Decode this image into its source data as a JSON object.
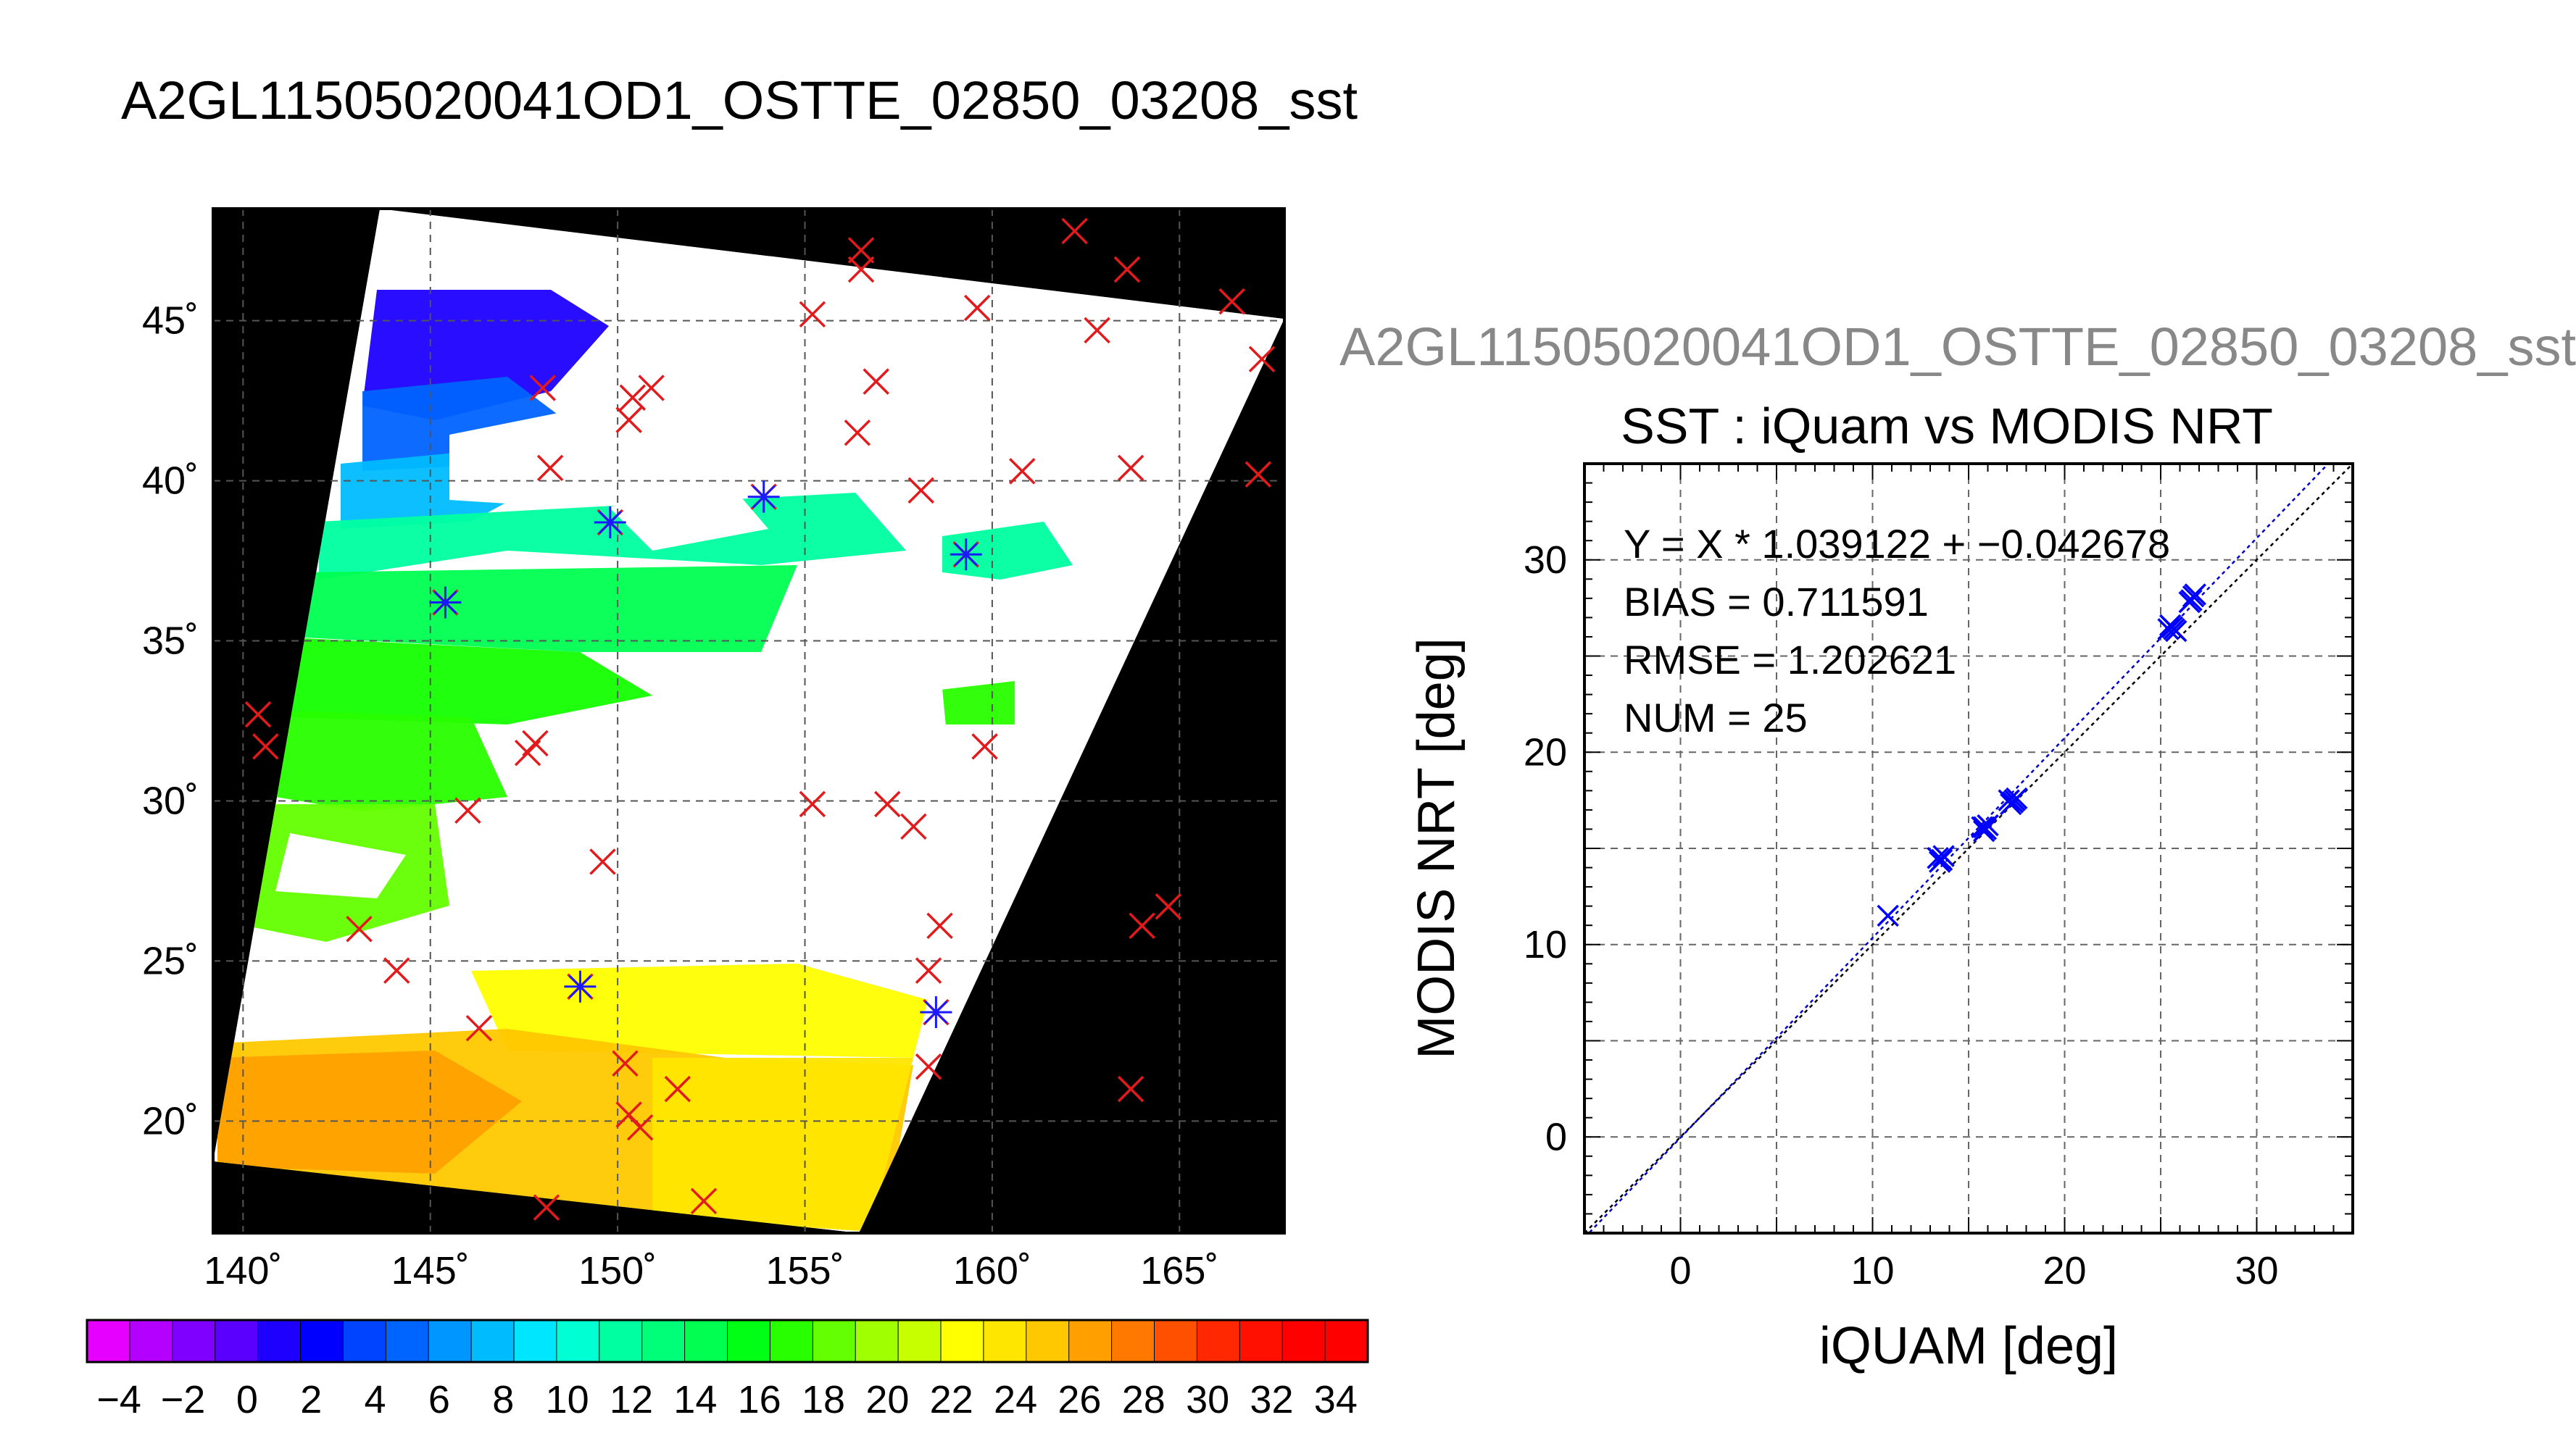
{
  "figure": {
    "main_title": "A2GL11505020041OD1_OSTTE_02850_03208_sst",
    "scatter_supertitle": "A2GL11505020041OD1_OSTTE_02850_03208_sst"
  },
  "colors": {
    "match_marker": "#e31a1c",
    "scatter_marker": "#0000ff",
    "fit_line": "#0000cc",
    "one_to_one_line": "#000000",
    "map_background": "#000000",
    "cloud": "#ffffff"
  },
  "chart_data": [
    {
      "type": "heatmap",
      "title": "",
      "xlabel": "",
      "ylabel": "",
      "x_ticks": [
        "140˚",
        "145˚",
        "150˚",
        "155˚",
        "160˚",
        "165˚"
      ],
      "y_ticks": [
        "20˚",
        "25˚",
        "30˚",
        "35˚",
        "40˚",
        "45˚"
      ],
      "xlim": [
        139.2,
        167.8
      ],
      "ylim": [
        16.5,
        48.5
      ],
      "grid": true,
      "colorbar": {
        "ticks": [
          "−4",
          "−2",
          "0",
          "2",
          "4",
          "6",
          "8",
          "10",
          "12",
          "14",
          "16",
          "18",
          "20",
          "22",
          "24",
          "26",
          "28",
          "30",
          "32",
          "34"
        ],
        "range": [
          -5,
          35
        ],
        "colors": [
          "#e600ff",
          "#b400ff",
          "#7f00ff",
          "#5a00ff",
          "#1e00ff",
          "#0000ff",
          "#0044ff",
          "#0064ff",
          "#0096ff",
          "#00bcff",
          "#00e6ff",
          "#00ffd2",
          "#00ffa0",
          "#00ff78",
          "#00ff50",
          "#00ff14",
          "#28ff00",
          "#64ff00",
          "#a0ff00",
          "#c8ff00",
          "#ffff00",
          "#ffe600",
          "#ffc800",
          "#ffa000",
          "#ff7800",
          "#ff5000",
          "#ff2800",
          "#ff1000",
          "#ff0000",
          "#ff0000"
        ]
      },
      "matchups": [
        {
          "lon": 162.2,
          "lat": 47.8,
          "blue": false
        },
        {
          "lon": 156.5,
          "lat": 47.2,
          "blue": false
        },
        {
          "lon": 156.5,
          "lat": 46.6,
          "blue": false
        },
        {
          "lon": 163.6,
          "lat": 46.6,
          "blue": false
        },
        {
          "lon": 166.4,
          "lat": 45.6,
          "blue": false
        },
        {
          "lon": 159.6,
          "lat": 45.4,
          "blue": false
        },
        {
          "lon": 155.2,
          "lat": 45.2,
          "blue": false
        },
        {
          "lon": 162.8,
          "lat": 44.7,
          "blue": false
        },
        {
          "lon": 167.2,
          "lat": 43.8,
          "blue": false
        },
        {
          "lon": 156.9,
          "lat": 43.1,
          "blue": false
        },
        {
          "lon": 148.0,
          "lat": 42.9,
          "blue": false
        },
        {
          "lon": 150.4,
          "lat": 42.6,
          "blue": false
        },
        {
          "lon": 150.9,
          "lat": 42.9,
          "blue": false
        },
        {
          "lon": 150.3,
          "lat": 41.9,
          "blue": false
        },
        {
          "lon": 156.4,
          "lat": 41.5,
          "blue": false
        },
        {
          "lon": 148.2,
          "lat": 40.4,
          "blue": false
        },
        {
          "lon": 160.8,
          "lat": 40.3,
          "blue": false
        },
        {
          "lon": 163.7,
          "lat": 40.4,
          "blue": false
        },
        {
          "lon": 167.1,
          "lat": 40.2,
          "blue": false
        },
        {
          "lon": 158.1,
          "lat": 39.7,
          "blue": false
        },
        {
          "lon": 153.9,
          "lat": 39.5,
          "blue": true
        },
        {
          "lon": 149.8,
          "lat": 38.7,
          "blue": true
        },
        {
          "lon": 159.3,
          "lat": 37.7,
          "blue": true
        },
        {
          "lon": 145.4,
          "lat": 36.2,
          "blue": true
        },
        {
          "lon": 140.4,
          "lat": 32.7,
          "blue": false
        },
        {
          "lon": 140.6,
          "lat": 31.7,
          "blue": false
        },
        {
          "lon": 147.8,
          "lat": 31.8,
          "blue": false
        },
        {
          "lon": 147.6,
          "lat": 31.5,
          "blue": false
        },
        {
          "lon": 159.8,
          "lat": 31.7,
          "blue": false
        },
        {
          "lon": 155.2,
          "lat": 29.9,
          "blue": false
        },
        {
          "lon": 157.2,
          "lat": 29.9,
          "blue": false
        },
        {
          "lon": 146.0,
          "lat": 29.7,
          "blue": false
        },
        {
          "lon": 157.9,
          "lat": 29.2,
          "blue": false
        },
        {
          "lon": 149.6,
          "lat": 28.1,
          "blue": false
        },
        {
          "lon": 164.7,
          "lat": 26.7,
          "blue": false
        },
        {
          "lon": 143.1,
          "lat": 26.0,
          "blue": false
        },
        {
          "lon": 164.0,
          "lat": 26.1,
          "blue": false
        },
        {
          "lon": 158.6,
          "lat": 26.1,
          "blue": false
        },
        {
          "lon": 144.1,
          "lat": 24.7,
          "blue": false
        },
        {
          "lon": 158.3,
          "lat": 24.7,
          "blue": false
        },
        {
          "lon": 149.0,
          "lat": 24.2,
          "blue": true
        },
        {
          "lon": 158.5,
          "lat": 23.4,
          "blue": true
        },
        {
          "lon": 146.3,
          "lat": 22.9,
          "blue": false
        },
        {
          "lon": 150.2,
          "lat": 21.8,
          "blue": false
        },
        {
          "lon": 158.3,
          "lat": 21.7,
          "blue": false
        },
        {
          "lon": 151.6,
          "lat": 21.0,
          "blue": false
        },
        {
          "lon": 163.7,
          "lat": 21.0,
          "blue": false
        },
        {
          "lon": 150.3,
          "lat": 20.2,
          "blue": false
        },
        {
          "lon": 150.6,
          "lat": 19.8,
          "blue": false
        },
        {
          "lon": 148.1,
          "lat": 17.3,
          "blue": false
        },
        {
          "lon": 152.3,
          "lat": 17.5,
          "blue": false
        }
      ]
    },
    {
      "type": "scatter",
      "title": "SST : iQuam vs MODIS NRT",
      "xlabel": "iQUAM [deg]",
      "ylabel": "MODIS NRT [deg]",
      "xlim": [
        -5,
        35
      ],
      "ylim": [
        -5,
        35
      ],
      "x_ticks": [
        0,
        10,
        20,
        30
      ],
      "y_ticks": [
        0,
        10,
        20,
        30
      ],
      "grid": true,
      "annotations": [
        "Y = X * 1.039122 + −0.042678",
        "BIAS = 0.711591",
        "RMSE = 1.202621",
        "NUM = 25"
      ],
      "fit": {
        "slope": 1.039122,
        "intercept": -0.042678
      },
      "series": [
        {
          "x": [
            10.8,
            13.4,
            13.6,
            13.7,
            13.5,
            15.7,
            15.9,
            16.0,
            15.8,
            17.1,
            17.3,
            17.5,
            17.2,
            25.4,
            25.6,
            25.8,
            25.5,
            26.5,
            26.7,
            26.6,
            26.8,
            13.6,
            15.8,
            17.4,
            25.7
          ],
          "y": [
            11.5,
            14.5,
            14.4,
            14.6,
            14.3,
            16.1,
            16.0,
            16.2,
            15.9,
            17.5,
            17.4,
            17.6,
            17.3,
            26.4,
            26.5,
            26.3,
            26.6,
            27.8,
            28.1,
            27.9,
            28.2,
            14.4,
            16.1,
            17.5,
            26.4
          ]
        }
      ]
    }
  ]
}
